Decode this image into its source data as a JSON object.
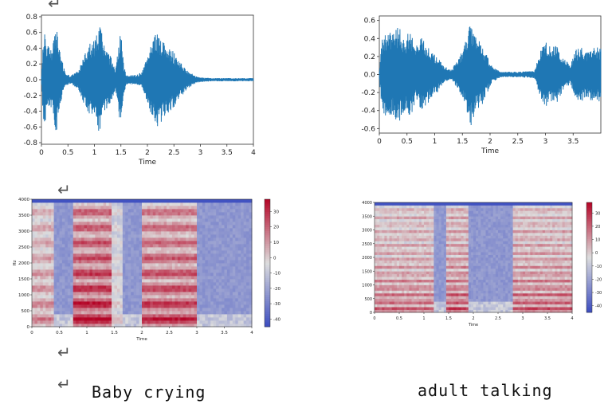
{
  "page": {
    "left_caption": "Baby crying",
    "right_caption": "adult talking",
    "return_mark": "↵"
  },
  "colors": {
    "wave": "#1f77b4",
    "cool": "#3b4cc0",
    "neutral": "#dddddd",
    "warm": "#b40426"
  },
  "chart_data": [
    {
      "id": "wave_baby",
      "type": "line",
      "xlabel": "Time",
      "ylabel": "",
      "xlim": [
        0,
        4
      ],
      "ylim": [
        -0.82,
        0.82
      ],
      "xticks": [
        "0",
        "0.5",
        "1",
        "1.5",
        "2",
        "2.5",
        "3",
        "3.5",
        "4"
      ],
      "xtick_values": [
        0,
        0.5,
        1,
        1.5,
        2,
        2.5,
        3,
        3.5,
        4
      ],
      "yticks": [
        "0.8",
        "0.6",
        "0.4",
        "0.2",
        "0.0",
        "-0.2",
        "-0.4",
        "-0.6",
        "-0.8"
      ],
      "ytick_values": [
        0.8,
        0.6,
        0.4,
        0.2,
        0.0,
        -0.2,
        -0.4,
        -0.6,
        -0.8
      ],
      "envelope": {
        "t": [
          0,
          0.05,
          0.1,
          0.2,
          0.28,
          0.35,
          0.45,
          0.55,
          0.7,
          0.8,
          0.9,
          1.0,
          1.1,
          1.2,
          1.3,
          1.4,
          1.45,
          1.5,
          1.55,
          1.6,
          1.8,
          1.9,
          2.0,
          2.1,
          2.2,
          2.3,
          2.4,
          2.5,
          2.6,
          2.75,
          2.9,
          3.0,
          3.2,
          3.5,
          3.8,
          4.0
        ],
        "amp": [
          0.05,
          0.7,
          0.45,
          0.4,
          0.68,
          0.35,
          0.08,
          0.05,
          0.12,
          0.3,
          0.45,
          0.5,
          0.72,
          0.4,
          0.3,
          0.15,
          0.45,
          0.6,
          0.2,
          0.06,
          0.06,
          0.1,
          0.3,
          0.55,
          0.6,
          0.5,
          0.42,
          0.35,
          0.25,
          0.12,
          0.05,
          0.03,
          0.02,
          0.02,
          0.02,
          0.02
        ]
      }
    },
    {
      "id": "wave_adult",
      "type": "line",
      "xlabel": "Time",
      "ylabel": "",
      "xlim": [
        0,
        4
      ],
      "ylim": [
        -0.65,
        0.65
      ],
      "xticks": [
        "0",
        "0.5",
        "1",
        "1.5",
        "2",
        "2.5",
        "3",
        "3.5"
      ],
      "xtick_values": [
        0,
        0.5,
        1,
        1.5,
        2,
        2.5,
        3,
        3.5
      ],
      "yticks": [
        "0.6",
        "0.4",
        "0.2",
        "0.0",
        "-0.2",
        "-0.4",
        "-0.6"
      ],
      "ytick_values": [
        0.6,
        0.4,
        0.2,
        0.0,
        -0.2,
        -0.4,
        -0.6
      ],
      "envelope": {
        "t": [
          0,
          0.05,
          0.15,
          0.25,
          0.35,
          0.45,
          0.55,
          0.65,
          0.75,
          0.85,
          0.95,
          1.05,
          1.15,
          1.3,
          1.45,
          1.55,
          1.65,
          1.75,
          1.85,
          1.95,
          2.05,
          2.2,
          2.5,
          2.8,
          2.9,
          3.0,
          3.1,
          3.2,
          3.3,
          3.45,
          3.55,
          3.65,
          3.75,
          3.85,
          4.0
        ],
        "amp": [
          0.05,
          0.4,
          0.5,
          0.45,
          0.55,
          0.4,
          0.5,
          0.3,
          0.42,
          0.35,
          0.25,
          0.2,
          0.1,
          0.05,
          0.2,
          0.35,
          0.58,
          0.4,
          0.35,
          0.2,
          0.08,
          0.03,
          0.03,
          0.04,
          0.25,
          0.38,
          0.3,
          0.32,
          0.2,
          0.1,
          0.28,
          0.3,
          0.25,
          0.3,
          0.3
        ]
      }
    },
    {
      "id": "spec_baby",
      "type": "heatmap",
      "xlabel": "Time",
      "ylabel": "Hz",
      "xlim": [
        0,
        4
      ],
      "ylim": [
        0,
        4000
      ],
      "xticks": [
        "0",
        "0.5",
        "1",
        "1.5",
        "2",
        "2.5",
        "3",
        "3.5",
        "4"
      ],
      "xtick_values": [
        0,
        0.5,
        1,
        1.5,
        2,
        2.5,
        3,
        3.5,
        4
      ],
      "yticks": [
        "4000",
        "3500",
        "3000",
        "2500",
        "2000",
        "1500",
        "1000",
        "500",
        "0"
      ],
      "ytick_values": [
        4000,
        3500,
        3000,
        2500,
        2000,
        1500,
        1000,
        500,
        0
      ],
      "colorbar": {
        "ticks": [
          "30",
          "20",
          "10",
          "0",
          "-10",
          "-20",
          "-30",
          "-40"
        ],
        "tick_values": [
          30,
          20,
          10,
          0,
          -10,
          -20,
          -30,
          -40
        ],
        "range": [
          -45,
          38
        ]
      },
      "segments": [
        [
          0,
          0.4,
          0.6
        ],
        [
          0.75,
          1.45,
          1.0
        ],
        [
          1.45,
          1.65,
          0.35
        ],
        [
          2.0,
          3.0,
          0.9
        ]
      ],
      "harmonic_f0": 300
    },
    {
      "id": "spec_adult",
      "type": "heatmap",
      "xlabel": "Time",
      "ylabel": "",
      "xlim": [
        0,
        4
      ],
      "ylim": [
        0,
        4000
      ],
      "xticks": [
        "0",
        "0.5",
        "1",
        "1.5",
        "2",
        "2.5",
        "3",
        "3.5",
        "4"
      ],
      "xtick_values": [
        0,
        0.5,
        1,
        1.5,
        2,
        2.5,
        3,
        3.5,
        4
      ],
      "yticks": [
        "4000",
        "3500",
        "3000",
        "2500",
        "2000",
        "1500",
        "1000",
        "500",
        "0"
      ],
      "ytick_values": [
        4000,
        3500,
        3000,
        2500,
        2000,
        1500,
        1000,
        500,
        0
      ],
      "colorbar": {
        "ticks": [
          "30",
          "20",
          "10",
          "0",
          "-10",
          "-20",
          "-30",
          "-40"
        ],
        "tick_values": [
          30,
          20,
          10,
          0,
          -10,
          -20,
          -30,
          -40
        ],
        "range": [
          -45,
          38
        ]
      },
      "segments": [
        [
          0,
          1.2,
          0.75
        ],
        [
          1.45,
          1.9,
          0.85
        ],
        [
          2.8,
          4.0,
          0.8
        ]
      ],
      "harmonic_f0": 160
    }
  ]
}
